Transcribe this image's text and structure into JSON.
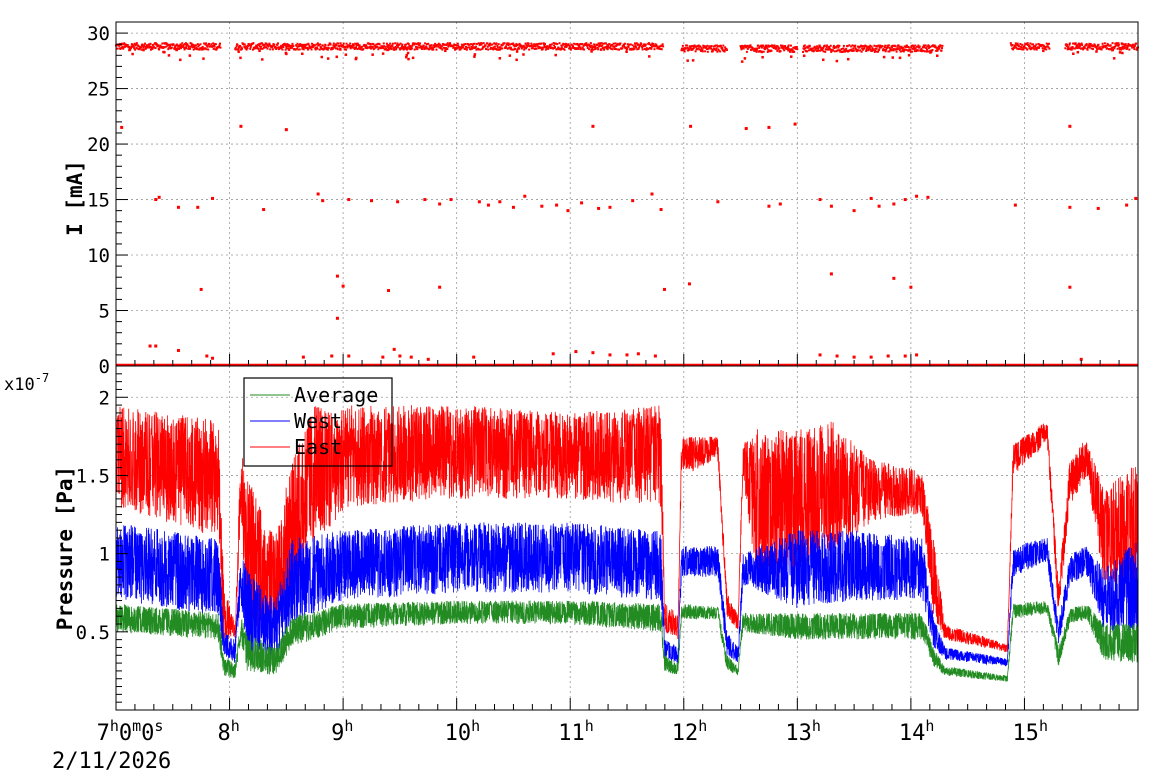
{
  "chart_data": [
    {
      "type": "scatter",
      "ylabel": "I [mA]",
      "ylim": [
        0,
        31
      ],
      "y_ticks": [
        "0",
        "5",
        "10",
        "15",
        "20",
        "25",
        "30"
      ],
      "grid": true,
      "series": [
        {
          "color": "#ff0000",
          "baseline_segments": [
            {
              "x": [
                7.0,
                7.92
              ],
              "y": 28.8
            },
            {
              "x": [
                8.05,
                11.82
              ],
              "y": 28.8
            },
            {
              "x": [
                11.98,
                12.38
              ],
              "y": 28.6
            },
            {
              "x": [
                12.5,
                13.0
              ],
              "y": 28.6
            },
            {
              "x": [
                13.05,
                14.28
              ],
              "y": 28.6
            },
            {
              "x": [
                14.88,
                15.22
              ],
              "y": 28.8
            },
            {
              "x": [
                15.36,
                16.0
              ],
              "y": 28.8
            }
          ],
          "points": [
            [
              7.05,
              21.5
            ],
            [
              8.1,
              21.6
            ],
            [
              8.5,
              21.3
            ],
            [
              11.2,
              21.6
            ],
            [
              12.06,
              21.6
            ],
            [
              12.55,
              21.4
            ],
            [
              12.75,
              21.5
            ],
            [
              12.98,
              21.8
            ],
            [
              15.4,
              21.6
            ],
            [
              7.35,
              15.0
            ],
            [
              7.38,
              15.2
            ],
            [
              7.55,
              14.3
            ],
            [
              7.72,
              14.3
            ],
            [
              7.85,
              15.1
            ],
            [
              8.3,
              14.1
            ],
            [
              8.78,
              15.5
            ],
            [
              8.82,
              14.9
            ],
            [
              9.05,
              15.0
            ],
            [
              9.25,
              14.9
            ],
            [
              9.48,
              14.8
            ],
            [
              9.72,
              15.0
            ],
            [
              9.85,
              14.6
            ],
            [
              9.95,
              15.0
            ],
            [
              10.2,
              14.8
            ],
            [
              10.28,
              14.5
            ],
            [
              10.38,
              14.8
            ],
            [
              10.5,
              14.3
            ],
            [
              10.6,
              15.3
            ],
            [
              10.75,
              14.4
            ],
            [
              10.88,
              14.5
            ],
            [
              10.98,
              14.0
            ],
            [
              11.1,
              14.7
            ],
            [
              11.25,
              14.2
            ],
            [
              11.35,
              14.3
            ],
            [
              11.55,
              14.9
            ],
            [
              11.72,
              15.5
            ],
            [
              11.8,
              14.1
            ],
            [
              12.3,
              14.8
            ],
            [
              12.75,
              14.4
            ],
            [
              12.85,
              14.6
            ],
            [
              13.2,
              15.0
            ],
            [
              13.3,
              14.4
            ],
            [
              13.5,
              14.0
            ],
            [
              13.65,
              15.1
            ],
            [
              13.72,
              14.4
            ],
            [
              13.85,
              14.6
            ],
            [
              13.95,
              15.0
            ],
            [
              14.05,
              15.3
            ],
            [
              14.15,
              15.2
            ],
            [
              14.92,
              14.5
            ],
            [
              15.4,
              14.3
            ],
            [
              15.65,
              14.2
            ],
            [
              15.9,
              14.5
            ],
            [
              15.98,
              15.1
            ],
            [
              7.75,
              6.9
            ],
            [
              8.95,
              8.1
            ],
            [
              9.0,
              7.2
            ],
            [
              8.95,
              4.3
            ],
            [
              9.4,
              6.8
            ],
            [
              9.85,
              7.1
            ],
            [
              11.83,
              6.9
            ],
            [
              12.05,
              7.4
            ],
            [
              13.3,
              8.3
            ],
            [
              13.85,
              7.9
            ],
            [
              14.0,
              7.1
            ],
            [
              15.4,
              7.1
            ],
            [
              7.3,
              1.8
            ],
            [
              7.35,
              1.8
            ],
            [
              7.55,
              1.4
            ],
            [
              7.8,
              0.9
            ],
            [
              7.85,
              0.7
            ],
            [
              8.65,
              0.8
            ],
            [
              8.9,
              0.9
            ],
            [
              9.05,
              0.9
            ],
            [
              9.35,
              0.8
            ],
            [
              9.45,
              1.5
            ],
            [
              9.5,
              0.9
            ],
            [
              9.6,
              0.8
            ],
            [
              9.75,
              0.6
            ],
            [
              10.15,
              0.8
            ],
            [
              10.85,
              1.1
            ],
            [
              11.05,
              1.3
            ],
            [
              11.2,
              1.2
            ],
            [
              11.35,
              1.0
            ],
            [
              11.5,
              1.0
            ],
            [
              11.6,
              1.1
            ],
            [
              11.75,
              0.9
            ],
            [
              13.2,
              1.0
            ],
            [
              13.35,
              0.9
            ],
            [
              13.5,
              0.8
            ],
            [
              13.65,
              0.8
            ],
            [
              13.8,
              0.9
            ],
            [
              13.95,
              0.9
            ],
            [
              14.05,
              1.0
            ],
            [
              15.5,
              0.6
            ]
          ]
        }
      ]
    },
    {
      "type": "line",
      "ylabel": "Pressure [Pa]",
      "y_exponent": "x10",
      "y_exponent_power": "-7",
      "ylim": [
        0.0,
        2.2
      ],
      "y_ticks": [
        "0.5",
        "1",
        "1.5",
        "2"
      ],
      "x_ticks": [
        "7",
        "8",
        "9",
        "10",
        "11",
        "12",
        "13",
        "14",
        "15"
      ],
      "x_first_tick": {
        "h": "7",
        "m": "0",
        "s": "0"
      },
      "x_tick_unit": "h",
      "x_tick_minute_unit": "m",
      "x_tick_second_unit": "s",
      "xlim": [
        7.0,
        16.0
      ],
      "date": "2/11/2026",
      "grid": true,
      "legend": {
        "placement": "top-left",
        "items": [
          "Average",
          "West",
          "East"
        ]
      },
      "series": [
        {
          "name": "East",
          "color": "#ff0000",
          "envelope": [
            [
              7.0,
              1.3,
              1.95
            ],
            [
              7.9,
              1.1,
              1.85
            ],
            [
              7.95,
              0.45,
              0.8
            ],
            [
              8.05,
              0.45,
              0.55
            ],
            [
              8.1,
              1.3,
              1.7
            ],
            [
              8.15,
              0.5,
              1.5
            ],
            [
              8.4,
              0.45,
              1.1
            ],
            [
              8.55,
              0.7,
              1.6
            ],
            [
              8.75,
              1.1,
              1.95
            ],
            [
              8.95,
              1.2,
              1.9
            ],
            [
              9.05,
              1.3,
              1.95
            ],
            [
              10.0,
              1.35,
              1.95
            ],
            [
              11.0,
              1.35,
              1.9
            ],
            [
              11.8,
              1.3,
              1.95
            ],
            [
              11.83,
              0.5,
              0.7
            ],
            [
              11.95,
              0.45,
              0.6
            ],
            [
              11.98,
              1.5,
              1.75
            ],
            [
              12.3,
              1.6,
              1.75
            ],
            [
              12.38,
              0.6,
              0.75
            ],
            [
              12.48,
              0.5,
              0.6
            ],
            [
              12.52,
              1.5,
              1.7
            ],
            [
              12.65,
              0.8,
              1.8
            ],
            [
              13.0,
              0.9,
              1.8
            ],
            [
              13.3,
              1.0,
              1.85
            ],
            [
              13.65,
              1.2,
              1.6
            ],
            [
              14.0,
              1.25,
              1.55
            ],
            [
              14.1,
              1.25,
              1.5
            ],
            [
              14.2,
              0.6,
              1.1
            ],
            [
              14.3,
              0.45,
              0.55
            ],
            [
              14.85,
              0.37,
              0.42
            ],
            [
              14.9,
              1.5,
              1.7
            ],
            [
              15.2,
              1.7,
              1.85
            ],
            [
              15.3,
              0.6,
              0.8
            ],
            [
              15.4,
              1.3,
              1.6
            ],
            [
              15.55,
              1.5,
              1.75
            ],
            [
              15.7,
              0.8,
              1.4
            ],
            [
              16.0,
              0.75,
              1.6
            ]
          ]
        },
        {
          "name": "West",
          "color": "#0000ff",
          "envelope": [
            [
              7.0,
              0.7,
              1.2
            ],
            [
              7.9,
              0.6,
              1.1
            ],
            [
              7.95,
              0.35,
              0.5
            ],
            [
              8.05,
              0.3,
              0.45
            ],
            [
              8.1,
              0.7,
              1.0
            ],
            [
              8.15,
              0.35,
              0.9
            ],
            [
              8.4,
              0.3,
              0.7
            ],
            [
              8.55,
              0.55,
              1.1
            ],
            [
              9.0,
              0.7,
              1.15
            ],
            [
              10.0,
              0.75,
              1.2
            ],
            [
              11.0,
              0.75,
              1.2
            ],
            [
              11.8,
              0.7,
              1.15
            ],
            [
              11.83,
              0.33,
              0.45
            ],
            [
              11.95,
              0.3,
              0.4
            ],
            [
              11.98,
              0.85,
              1.05
            ],
            [
              12.3,
              0.85,
              1.05
            ],
            [
              12.38,
              0.35,
              0.5
            ],
            [
              12.48,
              0.3,
              0.4
            ],
            [
              12.52,
              0.8,
              1.0
            ],
            [
              13.0,
              0.65,
              1.15
            ],
            [
              13.5,
              0.7,
              1.15
            ],
            [
              14.1,
              0.7,
              1.1
            ],
            [
              14.2,
              0.4,
              0.6
            ],
            [
              14.3,
              0.32,
              0.4
            ],
            [
              14.85,
              0.28,
              0.33
            ],
            [
              14.9,
              0.85,
              1.05
            ],
            [
              15.2,
              0.95,
              1.1
            ],
            [
              15.3,
              0.4,
              0.55
            ],
            [
              15.4,
              0.8,
              1.0
            ],
            [
              15.55,
              0.85,
              1.05
            ],
            [
              15.7,
              0.5,
              0.9
            ],
            [
              16.0,
              0.5,
              1.1
            ]
          ]
        },
        {
          "name": "Average",
          "color": "#228b22",
          "envelope": [
            [
              7.0,
              0.5,
              0.68
            ],
            [
              7.9,
              0.45,
              0.62
            ],
            [
              7.95,
              0.22,
              0.35
            ],
            [
              8.05,
              0.2,
              0.3
            ],
            [
              8.1,
              0.45,
              0.6
            ],
            [
              8.15,
              0.25,
              0.5
            ],
            [
              8.4,
              0.22,
              0.4
            ],
            [
              8.55,
              0.4,
              0.6
            ],
            [
              9.0,
              0.52,
              0.68
            ],
            [
              10.0,
              0.55,
              0.7
            ],
            [
              11.0,
              0.55,
              0.7
            ],
            [
              11.8,
              0.5,
              0.68
            ],
            [
              11.83,
              0.25,
              0.35
            ],
            [
              11.95,
              0.22,
              0.3
            ],
            [
              11.98,
              0.58,
              0.68
            ],
            [
              12.3,
              0.58,
              0.66
            ],
            [
              12.38,
              0.25,
              0.35
            ],
            [
              12.48,
              0.22,
              0.28
            ],
            [
              12.52,
              0.5,
              0.62
            ],
            [
              13.0,
              0.45,
              0.62
            ],
            [
              14.1,
              0.45,
              0.62
            ],
            [
              14.2,
              0.28,
              0.4
            ],
            [
              14.3,
              0.22,
              0.28
            ],
            [
              14.85,
              0.18,
              0.22
            ],
            [
              14.9,
              0.58,
              0.68
            ],
            [
              15.2,
              0.62,
              0.7
            ],
            [
              15.3,
              0.28,
              0.4
            ],
            [
              15.4,
              0.55,
              0.65
            ],
            [
              15.55,
              0.58,
              0.68
            ],
            [
              15.7,
              0.32,
              0.55
            ],
            [
              16.0,
              0.3,
              0.55
            ]
          ]
        }
      ]
    }
  ]
}
